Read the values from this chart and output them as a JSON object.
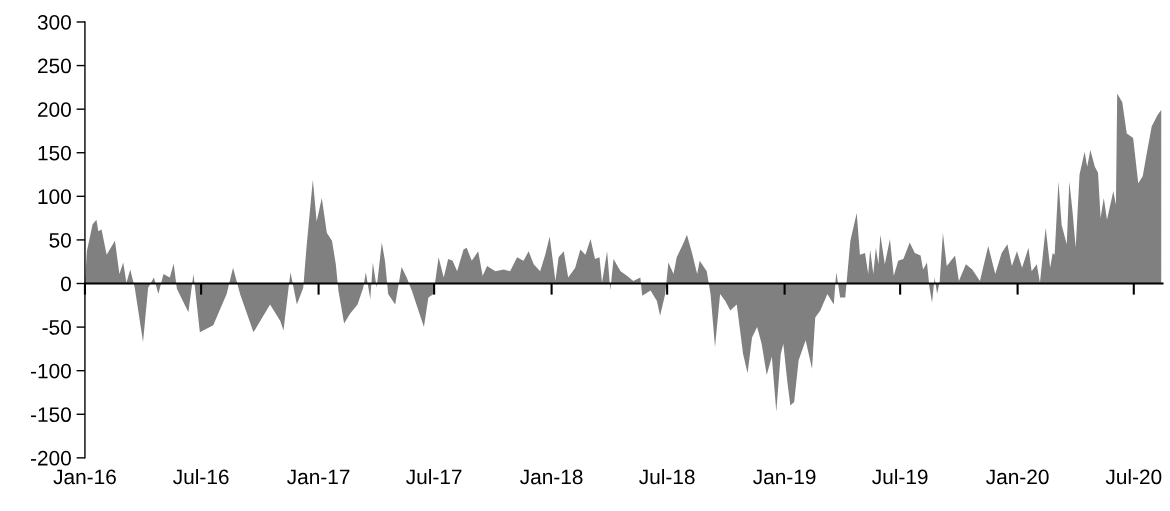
{
  "chart_data": {
    "type": "area",
    "x": [
      "2016-01-01",
      "2016-01-04",
      "2016-01-13",
      "2016-01-19",
      "2016-01-22",
      "2016-01-27",
      "2016-02-04",
      "2016-02-17",
      "2016-02-24",
      "2016-03-01",
      "2016-03-06",
      "2016-03-12",
      "2016-03-19",
      "2016-04-01",
      "2016-04-09",
      "2016-04-18",
      "2016-04-25",
      "2016-05-03",
      "2016-05-13",
      "2016-05-19",
      "2016-05-24",
      "2016-06-11",
      "2016-06-19",
      "2016-06-29",
      "2016-07-20",
      "2016-08-10",
      "2016-08-20",
      "2016-08-31",
      "2016-09-21",
      "2016-10-17",
      "2016-11-02",
      "2016-11-07",
      "2016-11-15",
      "2016-11-18",
      "2016-11-28",
      "2016-12-08",
      "2016-12-13",
      "2016-12-23",
      "2016-12-29",
      "2017-01-06",
      "2017-01-14",
      "2017-01-22",
      "2017-01-28",
      "2017-02-01",
      "2017-02-10",
      "2017-02-19",
      "2017-03-03",
      "2017-03-12",
      "2017-03-16",
      "2017-03-23",
      "2017-03-27",
      "2017-04-02",
      "2017-04-10",
      "2017-04-15",
      "2017-04-20",
      "2017-05-01",
      "2017-05-11",
      "2017-05-19",
      "2017-05-27",
      "2017-06-15",
      "2017-06-22",
      "2017-06-30",
      "2017-07-08",
      "2017-07-16",
      "2017-07-23",
      "2017-07-30",
      "2017-08-06",
      "2017-08-16",
      "2017-08-21",
      "2017-08-29",
      "2017-09-08",
      "2017-09-15",
      "2017-09-22",
      "2017-10-05",
      "2017-10-18",
      "2017-10-28",
      "2017-11-08",
      "2017-11-18",
      "2017-11-26",
      "2017-12-04",
      "2017-12-14",
      "2017-12-22",
      "2017-12-29",
      "2018-01-07",
      "2018-01-12",
      "2018-01-20",
      "2018-01-27",
      "2018-02-07",
      "2018-02-15",
      "2018-02-23",
      "2018-03-03",
      "2018-03-10",
      "2018-03-17",
      "2018-03-21",
      "2018-03-29",
      "2018-04-03",
      "2018-04-08",
      "2018-04-19",
      "2018-04-29",
      "2018-05-09",
      "2018-05-20",
      "2018-05-23",
      "2018-06-05",
      "2018-06-15",
      "2018-06-20",
      "2018-06-28",
      "2018-07-03",
      "2018-07-11",
      "2018-07-16",
      "2018-07-27",
      "2018-08-01",
      "2018-08-09",
      "2018-08-17",
      "2018-08-21",
      "2018-09-01",
      "2018-09-07",
      "2018-09-14",
      "2018-09-22",
      "2018-09-30",
      "2018-10-08",
      "2018-10-18",
      "2018-10-28",
      "2018-11-04",
      "2018-11-11",
      "2018-11-19",
      "2018-11-26",
      "2018-12-04",
      "2018-12-12",
      "2018-12-19",
      "2018-12-26",
      "2018-12-30",
      "2019-01-05",
      "2019-01-10",
      "2019-01-16",
      "2019-01-23",
      "2019-02-03",
      "2019-02-13",
      "2019-02-18",
      "2019-02-26",
      "2019-03-09",
      "2019-03-19",
      "2019-03-23",
      "2019-03-29",
      "2019-04-06",
      "2019-04-14",
      "2019-04-24",
      "2019-04-29",
      "2019-05-07",
      "2019-05-12",
      "2019-05-15",
      "2019-05-20",
      "2019-05-24",
      "2019-05-28",
      "2019-05-31",
      "2019-06-07",
      "2019-06-15",
      "2019-06-21",
      "2019-06-28",
      "2019-07-06",
      "2019-07-16",
      "2019-07-24",
      "2019-08-02",
      "2019-08-06",
      "2019-08-12",
      "2019-08-16",
      "2019-08-20",
      "2019-08-24",
      "2019-08-28",
      "2019-09-01",
      "2019-09-06",
      "2019-09-12",
      "2019-09-25",
      "2019-10-01",
      "2019-10-12",
      "2019-10-22",
      "2019-11-03",
      "2019-11-16",
      "2019-11-27",
      "2019-12-07",
      "2019-12-16",
      "2019-12-23",
      "2019-12-31",
      "2020-01-08",
      "2020-01-18",
      "2020-01-23",
      "2020-01-31",
      "2020-02-05",
      "2020-02-14",
      "2020-02-21",
      "2020-02-25",
      "2020-02-28",
      "2020-03-05",
      "2020-03-10",
      "2020-03-18",
      "2020-03-22",
      "2020-03-27",
      "2020-04-01",
      "2020-04-07",
      "2020-04-15",
      "2020-04-19",
      "2020-04-24",
      "2020-05-01",
      "2020-05-06",
      "2020-05-10",
      "2020-05-15",
      "2020-05-20",
      "2020-05-30",
      "2020-06-03",
      "2020-06-05",
      "2020-06-13",
      "2020-06-20",
      "2020-06-30",
      "2020-07-08",
      "2020-07-15",
      "2020-07-21",
      "2020-07-29",
      "2020-08-07",
      "2020-08-13"
    ],
    "series": [
      {
        "color": "#808080",
        "values": [
          0,
          37,
          68,
          73,
          60,
          62,
          33,
          49,
          11,
          24,
          1,
          16,
          -5,
          -67,
          -5,
          7,
          -12,
          11,
          7,
          23,
          -6,
          -33,
          11,
          -56,
          -48,
          -12,
          18,
          -12,
          -56,
          -24,
          -43,
          -54,
          -5,
          13,
          -24,
          -5,
          41,
          119,
          71,
          98,
          58,
          49,
          22,
          -8,
          -46,
          -35,
          -24,
          -5,
          13,
          -18,
          24,
          -5,
          47,
          26,
          -12,
          -24,
          19,
          7,
          -8,
          -50,
          -16,
          -12,
          30,
          7,
          28,
          26,
          14,
          39,
          41,
          26,
          37,
          9,
          20,
          14,
          16,
          14,
          30,
          26,
          37,
          22,
          14,
          33,
          54,
          3,
          30,
          37,
          7,
          18,
          39,
          33,
          51,
          28,
          30,
          1,
          37,
          -8,
          28,
          14,
          9,
          3,
          7,
          -14,
          -8,
          -20,
          -37,
          -12,
          24,
          11,
          30,
          47,
          56,
          35,
          11,
          26,
          14,
          -12,
          -73,
          -12,
          -20,
          -31,
          -24,
          -81,
          -103,
          -62,
          -50,
          -69,
          -105,
          -84,
          -147,
          -81,
          -69,
          -111,
          -140,
          -136,
          -88,
          -65,
          -98,
          -39,
          -31,
          -12,
          -24,
          13,
          -16,
          -16,
          49,
          81,
          33,
          35,
          11,
          39,
          11,
          41,
          22,
          56,
          22,
          51,
          9,
          26,
          28,
          47,
          35,
          32,
          16,
          24,
          -5,
          -22,
          7,
          -12,
          3,
          58,
          20,
          32,
          3,
          22,
          16,
          3,
          43,
          11,
          35,
          45,
          20,
          37,
          18,
          41,
          14,
          22,
          1,
          64,
          18,
          35,
          33,
          117,
          67,
          45,
          117,
          83,
          41,
          125,
          151,
          134,
          153,
          134,
          127,
          75,
          98,
          73,
          106,
          90,
          218,
          208,
          172,
          167,
          115,
          123,
          148,
          180,
          193,
          199
        ]
      }
    ],
    "xlim": [
      "2016-01-01",
      "2020-08-15"
    ],
    "xticks": [
      {
        "value": "2016-01-01",
        "label": "Jan-16"
      },
      {
        "value": "2016-07-01",
        "label": "Jul-16"
      },
      {
        "value": "2017-01-01",
        "label": "Jan-17"
      },
      {
        "value": "2017-07-01",
        "label": "Jul-17"
      },
      {
        "value": "2018-01-01",
        "label": "Jan-18"
      },
      {
        "value": "2018-07-01",
        "label": "Jul-18"
      },
      {
        "value": "2019-01-01",
        "label": "Jan-19"
      },
      {
        "value": "2019-07-01",
        "label": "Jul-19"
      },
      {
        "value": "2020-01-01",
        "label": "Jan-20"
      },
      {
        "value": "2020-07-01",
        "label": "Jul-20"
      }
    ],
    "ylim": [
      -200,
      300
    ],
    "yticks": [
      -200,
      -150,
      -100,
      -50,
      0,
      50,
      100,
      150,
      200,
      250,
      300
    ]
  }
}
